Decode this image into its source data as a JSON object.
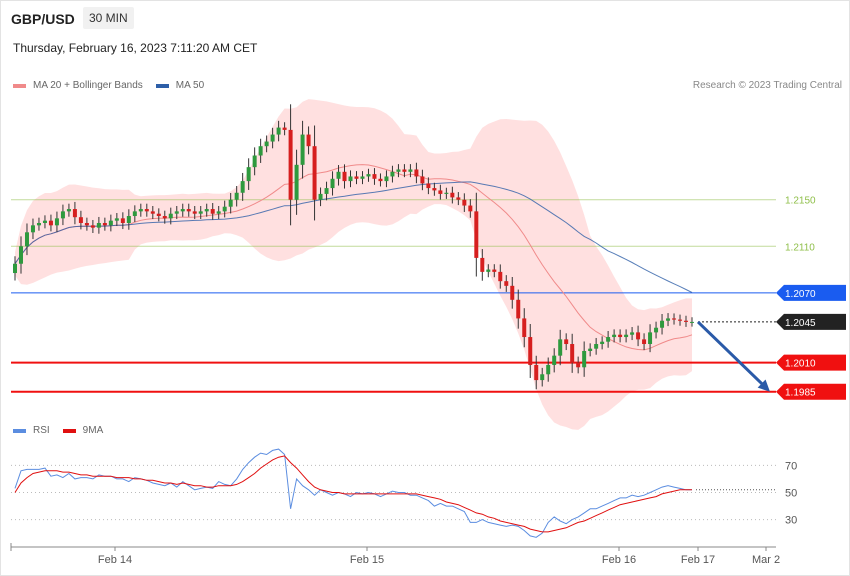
{
  "header": {
    "pair": "GBP/USD",
    "timeframe": "30 MIN",
    "date": "Thursday, February 16, 2023 7:11:20 AM CET",
    "credit": "Research © 2023 Trading Central"
  },
  "legend": {
    "price": [
      {
        "label": "MA 20 + Bollinger Bands",
        "color": "#f08a8a"
      },
      {
        "label": "MA 50",
        "color": "#2e5fa8"
      }
    ],
    "rsi": [
      {
        "label": "RSI",
        "color": "#5b8de0"
      },
      {
        "label": "9MA",
        "color": "#e01010"
      }
    ]
  },
  "chart_data": [
    {
      "type": "candlestick",
      "name": "price",
      "ylim": [
        1.1965,
        1.224
      ],
      "x_ticks": [
        "Feb 14",
        "Feb 15",
        "Feb 16",
        "Feb 17",
        "Mar 2"
      ],
      "levels": [
        {
          "value": 1.215,
          "label": "1.2150",
          "color": "#8fbf4a",
          "style": "thin"
        },
        {
          "value": 1.211,
          "label": "1.2110",
          "color": "#8fbf4a",
          "style": "thin"
        },
        {
          "value": 1.207,
          "label": "1.2070",
          "color": "#1a5cf0",
          "style": "line-tag"
        },
        {
          "value": 1.2045,
          "label": "1.2045",
          "color": "#222222",
          "style": "dotted-tag"
        },
        {
          "value": 1.201,
          "label": "1.2010",
          "color": "#f01010",
          "style": "thick-tag"
        },
        {
          "value": 1.1985,
          "label": "1.1985",
          "color": "#f01010",
          "style": "thick-tag"
        }
      ],
      "projection": {
        "from": 1.2045,
        "to": 1.1985,
        "color": "#2a5aa8"
      },
      "close_path": [
        1.2095,
        1.211,
        1.2122,
        1.2128,
        1.213,
        1.2132,
        1.2128,
        1.2134,
        1.214,
        1.2142,
        1.2135,
        1.213,
        1.2128,
        1.2126,
        1.213,
        1.2128,
        1.2132,
        1.2134,
        1.213,
        1.2136,
        1.214,
        1.2142,
        1.214,
        1.2138,
        1.2136,
        1.2134,
        1.2138,
        1.214,
        1.2142,
        1.214,
        1.2138,
        1.214,
        1.2142,
        1.2138,
        1.214,
        1.2144,
        1.215,
        1.2156,
        1.2166,
        1.2178,
        1.2188,
        1.2196,
        1.22,
        1.2206,
        1.2212,
        1.221,
        1.215,
        1.218,
        1.2206,
        1.2196,
        1.215,
        1.2155,
        1.216,
        1.2168,
        1.2174,
        1.2166,
        1.217,
        1.2168,
        1.217,
        1.2172,
        1.2168,
        1.2166,
        1.217,
        1.2174,
        1.2176,
        1.2174,
        1.2176,
        1.217,
        1.2164,
        1.216,
        1.2158,
        1.2155,
        1.2156,
        1.2152,
        1.215,
        1.2145,
        1.214,
        1.21,
        1.2088,
        1.209,
        1.2088,
        1.208,
        1.2076,
        1.2064,
        1.2048,
        1.2032,
        1.2008,
        1.1995,
        1.2,
        1.2008,
        1.2016,
        1.203,
        1.2026,
        1.201,
        1.2006,
        1.202,
        1.2022,
        1.2026,
        1.2028,
        1.2032,
        1.2034,
        1.2032,
        1.2034,
        1.2036,
        1.203,
        1.2026,
        1.2036,
        1.204,
        1.2046,
        1.2048,
        1.2047,
        1.2046,
        1.2045,
        1.2045
      ]
    },
    {
      "type": "line",
      "name": "rsi",
      "ylim": [
        15,
        85
      ],
      "yticks": [
        70,
        50,
        30
      ],
      "series_rsi": [
        53,
        66,
        67,
        67,
        67,
        68,
        62,
        63,
        61,
        64,
        60,
        61,
        61,
        60,
        63,
        62,
        62,
        60,
        60,
        58,
        61,
        60,
        59,
        57,
        56,
        55,
        57,
        54,
        58,
        55,
        52,
        53,
        54,
        53,
        58,
        56,
        55,
        60,
        67,
        72,
        76,
        79,
        78,
        81,
        82,
        78,
        38,
        60,
        55,
        52,
        48,
        52,
        50,
        48,
        50,
        49,
        47,
        50,
        49,
        50,
        49,
        47,
        49,
        51,
        50,
        50,
        48,
        48,
        46,
        44,
        40,
        42,
        40,
        40,
        38,
        36,
        28,
        28,
        30,
        28,
        27,
        26,
        25,
        26,
        25,
        22,
        18,
        17,
        20,
        28,
        32,
        29,
        27,
        30,
        32,
        35,
        38,
        38,
        40,
        42,
        44,
        46,
        46,
        48,
        47,
        48,
        50,
        52,
        54,
        55,
        54,
        53,
        52,
        52
      ],
      "series_9ma": [
        50,
        57,
        61,
        64,
        65,
        66,
        66,
        66,
        65,
        65,
        64,
        63,
        63,
        62,
        62,
        62,
        62,
        61,
        61,
        61,
        60,
        60,
        59,
        59,
        58,
        57,
        57,
        56,
        57,
        56,
        55,
        55,
        54,
        54,
        55,
        55,
        55,
        56,
        58,
        61,
        64,
        68,
        71,
        74,
        76,
        77,
        72,
        68,
        63,
        58,
        54,
        52,
        51,
        50,
        50,
        49,
        49,
        49,
        49,
        49,
        49,
        49,
        49,
        49,
        49,
        49,
        49,
        49,
        48,
        47,
        46,
        45,
        43,
        42,
        41,
        39,
        37,
        35,
        34,
        32,
        31,
        29,
        28,
        27,
        26,
        25,
        23,
        22,
        21,
        21,
        22,
        23,
        24,
        26,
        28,
        29,
        31,
        33,
        35,
        37,
        39,
        41,
        42,
        43,
        44,
        45,
        46,
        47,
        49,
        50,
        51,
        52,
        52,
        52
      ]
    }
  ]
}
